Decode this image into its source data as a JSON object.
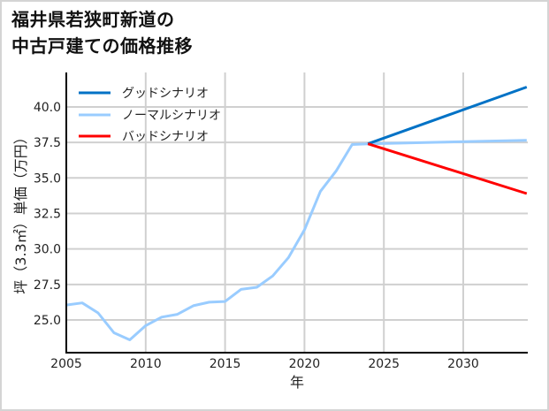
{
  "title": {
    "line1": "福井県若狭町新道の",
    "line2": "中古戸建ての価格推移"
  },
  "colors": {
    "good": "#0072c6",
    "normal": "#99ccff",
    "bad": "#ff0000",
    "grid": "#d0d0d0",
    "axis": "#000000",
    "border": "#d4d4d4"
  },
  "chart_data": {
    "type": "line",
    "title": "福井県若狭町新道の中古戸建ての価格推移",
    "xlabel": "年",
    "ylabel": "坪（3.3㎡）単価（万円）",
    "xlim": [
      2005,
      2034
    ],
    "ylim": [
      22.7,
      42.4
    ],
    "x_ticks": [
      2005,
      2010,
      2015,
      2020,
      2025,
      2030
    ],
    "y_ticks": [
      25.0,
      27.5,
      30.0,
      32.5,
      35.0,
      37.5,
      40.0
    ],
    "y_tick_labels": [
      "25.0",
      "27.5",
      "30.0",
      "32.5",
      "35.0",
      "37.5",
      "40.0"
    ],
    "x_tick_labels": [
      "2005",
      "2010",
      "2015",
      "2020",
      "2025",
      "2030"
    ],
    "grid": true,
    "legend_position": "upper left",
    "series": [
      {
        "name": "グッドシナリオ",
        "color": "#0072c6",
        "x": [
          2024,
          2034
        ],
        "values": [
          37.4,
          41.4
        ]
      },
      {
        "name": "ノーマルシナリオ",
        "color": "#99ccff",
        "x": [
          2005,
          2006,
          2007,
          2008,
          2009,
          2010,
          2011,
          2012,
          2013,
          2014,
          2015,
          2016,
          2017,
          2018,
          2019,
          2020,
          2021,
          2022,
          2023,
          2024,
          2034
        ],
        "values": [
          26.05,
          26.2,
          25.5,
          24.1,
          23.6,
          24.6,
          25.2,
          25.4,
          26.0,
          26.25,
          26.3,
          27.15,
          27.3,
          28.1,
          29.4,
          31.35,
          34.05,
          35.5,
          37.35,
          37.4,
          37.65
        ]
      },
      {
        "name": "バッドシナリオ",
        "color": "#ff0000",
        "x": [
          2024,
          2034
        ],
        "values": [
          37.4,
          33.9
        ]
      }
    ]
  }
}
